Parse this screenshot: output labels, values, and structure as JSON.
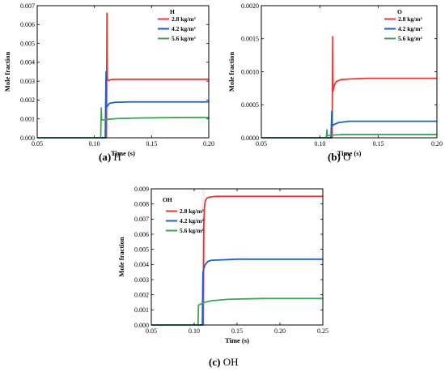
{
  "colors": {
    "red": "#e53935",
    "blue": "#1e5fc4",
    "green": "#3fa55a"
  },
  "legend_labels": [
    "2.8 kg/m³",
    "4.2 kg/m³",
    "5.6 kg/m³"
  ],
  "legend_labels_alt": [
    "2.8 kg/m²",
    "4.2 kg/m²",
    "5.6 kg/m²"
  ],
  "chart_data": [
    {
      "type": "line",
      "caption_letter": "(a)",
      "caption_rest": " H",
      "species_label": "H",
      "xlabel": "Time (s)",
      "ylabel": "Mole fraction",
      "xlim": [
        0.05,
        0.2
      ],
      "ylim": [
        0,
        0.007
      ],
      "xticks": [
        "0.05",
        "0.10",
        "0.15",
        "0.20"
      ],
      "yticks": [
        "0.000",
        "0.001",
        "0.002",
        "0.003",
        "0.004",
        "0.005",
        "0.006",
        "0.007"
      ],
      "series": [
        {
          "name": "2.8 kg/m³",
          "x": [
            0.05,
            0.1105,
            0.111,
            0.1113,
            0.1125,
            0.114,
            0.118,
            0.125,
            0.14,
            0.2
          ],
          "y": [
            0,
            0,
            0.0066,
            0.0031,
            0.00302,
            0.00308,
            0.0031,
            0.0031,
            0.0031,
            0.0031
          ]
        },
        {
          "name": "4.2 kg/m³",
          "x": [
            0.05,
            0.1095,
            0.1102,
            0.1105,
            0.111,
            0.113,
            0.118,
            0.13,
            0.16,
            0.2
          ],
          "y": [
            0,
            0,
            0.0035,
            0.0016,
            0.00165,
            0.00182,
            0.00188,
            0.0019,
            0.0019,
            0.0019
          ]
        },
        {
          "name": "5.6 kg/m³",
          "x": [
            0.05,
            0.1055,
            0.106,
            0.1063,
            0.108,
            0.112,
            0.12,
            0.14,
            0.17,
            0.2
          ],
          "y": [
            0,
            0,
            0.00158,
            0.00095,
            0.00095,
            0.00098,
            0.00102,
            0.00105,
            0.00107,
            0.00108
          ]
        }
      ]
    },
    {
      "type": "line",
      "caption_letter": "(b)",
      "caption_rest": " O",
      "species_label": "O",
      "xlabel": "Time (s)",
      "ylabel": "Mole fraction",
      "xlim": [
        0.05,
        0.2
      ],
      "ylim": [
        0,
        0.002
      ],
      "xticks": [
        "0.05",
        "0.10",
        "0.15",
        "0.20"
      ],
      "yticks": [
        "0.0000",
        "0.0005",
        "0.0010",
        "0.0015",
        "0.0020"
      ],
      "series": [
        {
          "name": "2.8 kg/m²",
          "x": [
            0.05,
            0.1105,
            0.111,
            0.1112,
            0.112,
            0.114,
            0.118,
            0.125,
            0.14,
            0.2
          ],
          "y": [
            0,
            0,
            0.00153,
            0.0007,
            0.00078,
            0.00085,
            0.00088,
            0.00089,
            0.0009,
            0.0009
          ]
        },
        {
          "name": "4.2 kg/m²",
          "x": [
            0.05,
            0.1095,
            0.1102,
            0.1105,
            0.112,
            0.116,
            0.125,
            0.14,
            0.2
          ],
          "y": [
            0,
            0,
            0.0004,
            0.00018,
            0.0002,
            0.00023,
            0.00025,
            0.00025,
            0.00025
          ]
        },
        {
          "name": "5.6 kg/m²",
          "x": [
            0.05,
            0.1055,
            0.106,
            0.1063,
            0.11,
            0.12,
            0.14,
            0.2
          ],
          "y": [
            0,
            0,
            0.00012,
            3e-05,
            4e-05,
            5e-05,
            5e-05,
            5e-05
          ]
        }
      ]
    },
    {
      "type": "line",
      "caption_letter": "(c)",
      "caption_rest": " OH",
      "species_label": "OH",
      "xlabel": "Time (s)",
      "ylabel": "Mole fraction",
      "xlim": [
        0.05,
        0.25
      ],
      "ylim": [
        0,
        0.009
      ],
      "xticks": [
        "0.05",
        "0.10",
        "0.15",
        "0.20",
        "0.25"
      ],
      "yticks": [
        "0.000",
        "0.001",
        "0.002",
        "0.003",
        "0.004",
        "0.005",
        "0.006",
        "0.007",
        "0.008",
        "0.009"
      ],
      "series": [
        {
          "name": "2.8 kg/m²",
          "x": [
            0.05,
            0.1105,
            0.1112,
            0.112,
            0.113,
            0.115,
            0.118,
            0.125,
            0.15,
            0.25
          ],
          "y": [
            0,
            0,
            0.0066,
            0.0078,
            0.0082,
            0.0084,
            0.00845,
            0.0085,
            0.0085,
            0.0085
          ]
        },
        {
          "name": "4.2 kg/m²",
          "x": [
            0.05,
            0.1095,
            0.1102,
            0.111,
            0.113,
            0.116,
            0.12,
            0.13,
            0.15,
            0.25
          ],
          "y": [
            0,
            0,
            0.0034,
            0.0037,
            0.004,
            0.0042,
            0.00428,
            0.0043,
            0.00435,
            0.00435
          ]
        },
        {
          "name": "5.6 kg/m²",
          "x": [
            0.05,
            0.1045,
            0.105,
            0.106,
            0.108,
            0.112,
            0.12,
            0.14,
            0.18,
            0.25
          ],
          "y": [
            0,
            0,
            0.0013,
            0.00135,
            0.0014,
            0.0015,
            0.0016,
            0.0017,
            0.00175,
            0.00175
          ]
        }
      ]
    }
  ]
}
